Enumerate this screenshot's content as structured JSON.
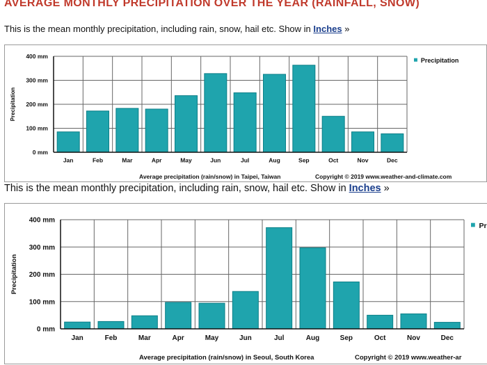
{
  "page": {
    "header": "AVERAGE MONTHLY PRECIPITATION OVER THE YEAR (RAINFALL, SNOW)",
    "intro1": {
      "text": "This is the mean monthly precipitation, including rain, snow, hail etc. Show in ",
      "link": "Inches",
      "suffix": " »"
    },
    "intro2": {
      "text": "This is the mean monthly precipitation, including rain, snow, hail etc. Show in ",
      "link": "Inches",
      "suffix": " »"
    }
  },
  "colors": {
    "bar": "#1fa4ad",
    "bar_edge": "#0d7f88",
    "title": "#c0392b",
    "link": "#1a3e8c"
  },
  "chart_data": [
    {
      "type": "bar",
      "categories": [
        "Jan",
        "Feb",
        "Mar",
        "Apr",
        "May",
        "Jun",
        "Jul",
        "Aug",
        "Sep",
        "Oct",
        "Nov",
        "Dec"
      ],
      "values": [
        85,
        172,
        183,
        180,
        236,
        328,
        248,
        325,
        363,
        150,
        85,
        77
      ],
      "ylabel": "Precipitation",
      "ylim": [
        0,
        400
      ],
      "yticks": [
        "0 mm",
        "100 mm",
        "200 mm",
        "300 mm",
        "400 mm"
      ],
      "legend": "Precipitation",
      "caption": "Average precipitation (rain/snow) in Taipei, Taiwan",
      "copyright": "Copyright © 2019 www.weather-and-climate.com"
    },
    {
      "type": "bar",
      "categories": [
        "Jan",
        "Feb",
        "Mar",
        "Apr",
        "May",
        "Jun",
        "Jul",
        "Aug",
        "Sep",
        "Oct",
        "Nov",
        "Dec"
      ],
      "values": [
        25,
        27,
        48,
        97,
        94,
        137,
        371,
        297,
        172,
        50,
        55,
        24
      ],
      "ylabel": "Precipitation",
      "ylim": [
        0,
        400
      ],
      "yticks": [
        "0 mm",
        "100 mm",
        "200 mm",
        "300 mm",
        "400 mm"
      ],
      "legend": "Pr",
      "caption": "Average precipitation (rain/snow) in Seoul, South Korea",
      "copyright": "Copyright © 2019 www.weather-ar"
    }
  ]
}
